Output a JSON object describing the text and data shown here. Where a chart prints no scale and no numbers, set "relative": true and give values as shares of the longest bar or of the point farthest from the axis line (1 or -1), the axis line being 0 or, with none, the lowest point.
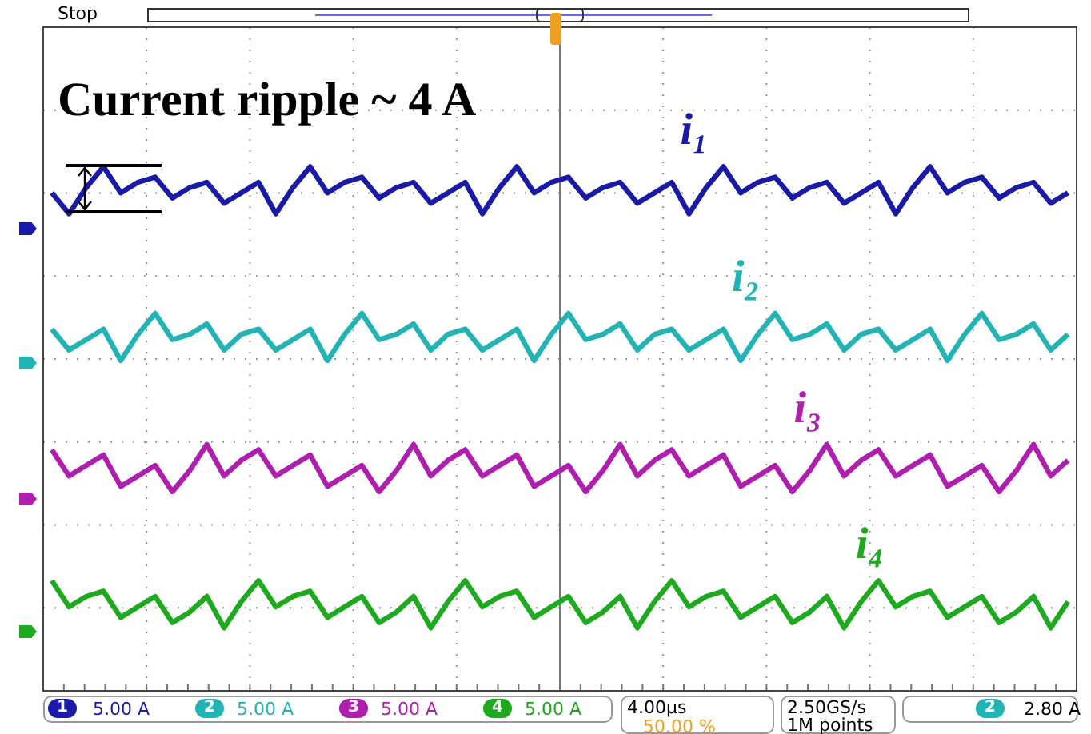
{
  "chart_data": {
    "type": "line",
    "relative": true,
    "grid": true,
    "legend": false,
    "marker": "none",
    "line_style": "solid",
    "categories": [
      null,
      null,
      null,
      null,
      null,
      null,
      null,
      null,
      null,
      null,
      null,
      null,
      null,
      null,
      null,
      null,
      null,
      null,
      null,
      null,
      null,
      null,
      null,
      null,
      null,
      null,
      null,
      null,
      null,
      null,
      null,
      null,
      null,
      null,
      null,
      null,
      null,
      null,
      null,
      null,
      null,
      null,
      null,
      null,
      null,
      null,
      null,
      null,
      null,
      null,
      null,
      null,
      null,
      null,
      null,
      null,
      null,
      null,
      null,
      null
    ],
    "series": [
      {
        "name": "i₁",
        "color": "#1a1aa8",
        "values": [
          0.95,
          0.91,
          0.96,
          1.0,
          0.95,
          0.97,
          0.98,
          0.94,
          0.96,
          0.97,
          0.93,
          0.95,
          0.97,
          0.91,
          0.96,
          1.0,
          0.95,
          0.97,
          0.98,
          0.94,
          0.96,
          0.97,
          0.93,
          0.95,
          0.97,
          0.91,
          0.96,
          1.0,
          0.95,
          0.97,
          0.98,
          0.94,
          0.96,
          0.97,
          0.93,
          0.95,
          0.97,
          0.91,
          0.96,
          1.0,
          0.95,
          0.97,
          0.98,
          0.94,
          0.96,
          0.97,
          0.93,
          0.95,
          0.97,
          0.91,
          0.96,
          1.0,
          0.95,
          0.97,
          0.98,
          0.94,
          0.96,
          0.97,
          0.93,
          0.95
        ]
      },
      {
        "name": "i₂",
        "color": "#22b4b4",
        "values": [
          0.69,
          0.65,
          0.67,
          0.69,
          0.63,
          0.68,
          0.72,
          0.67,
          0.68,
          0.7,
          0.65,
          0.68,
          0.69,
          0.65,
          0.67,
          0.69,
          0.63,
          0.68,
          0.72,
          0.67,
          0.68,
          0.7,
          0.65,
          0.68,
          0.69,
          0.65,
          0.67,
          0.69,
          0.63,
          0.68,
          0.72,
          0.67,
          0.68,
          0.7,
          0.65,
          0.68,
          0.69,
          0.65,
          0.67,
          0.69,
          0.63,
          0.68,
          0.72,
          0.67,
          0.68,
          0.7,
          0.65,
          0.68,
          0.69,
          0.65,
          0.67,
          0.69,
          0.63,
          0.68,
          0.72,
          0.67,
          0.68,
          0.7,
          0.65,
          0.68
        ]
      },
      {
        "name": "i₃",
        "color": "#b01eb0",
        "values": [
          0.46,
          0.41,
          0.43,
          0.45,
          0.39,
          0.41,
          0.43,
          0.38,
          0.42,
          0.47,
          0.41,
          0.44,
          0.46,
          0.41,
          0.43,
          0.45,
          0.39,
          0.41,
          0.43,
          0.38,
          0.42,
          0.47,
          0.41,
          0.44,
          0.46,
          0.41,
          0.43,
          0.45,
          0.39,
          0.41,
          0.43,
          0.38,
          0.42,
          0.47,
          0.41,
          0.44,
          0.46,
          0.41,
          0.43,
          0.45,
          0.39,
          0.41,
          0.43,
          0.38,
          0.42,
          0.47,
          0.41,
          0.44,
          0.46,
          0.41,
          0.43,
          0.45,
          0.39,
          0.41,
          0.43,
          0.38,
          0.42,
          0.47,
          0.41,
          0.44
        ]
      },
      {
        "name": "i₄",
        "color": "#1eaa1e",
        "values": [
          0.21,
          0.16,
          0.18,
          0.19,
          0.14,
          0.16,
          0.18,
          0.13,
          0.15,
          0.18,
          0.12,
          0.17,
          0.21,
          0.16,
          0.18,
          0.19,
          0.14,
          0.16,
          0.18,
          0.13,
          0.15,
          0.18,
          0.12,
          0.17,
          0.21,
          0.16,
          0.18,
          0.19,
          0.14,
          0.16,
          0.18,
          0.13,
          0.15,
          0.18,
          0.12,
          0.17,
          0.21,
          0.16,
          0.18,
          0.19,
          0.14,
          0.16,
          0.18,
          0.13,
          0.15,
          0.18,
          0.12,
          0.17,
          0.21,
          0.16,
          0.18,
          0.19,
          0.14,
          0.16,
          0.18,
          0.13,
          0.15,
          0.18,
          0.12,
          0.17
        ]
      }
    ],
    "annotations": [
      "Stop",
      "Current ripple ~ 4 A",
      "1",
      "5.00 A",
      "2",
      "5.00 A",
      "3",
      "5.00 A",
      "4",
      "5.00 A",
      "4.00µs",
      "50.00 %",
      "2.50GS/s",
      "1M points",
      "2",
      "2.80 A"
    ]
  }
}
